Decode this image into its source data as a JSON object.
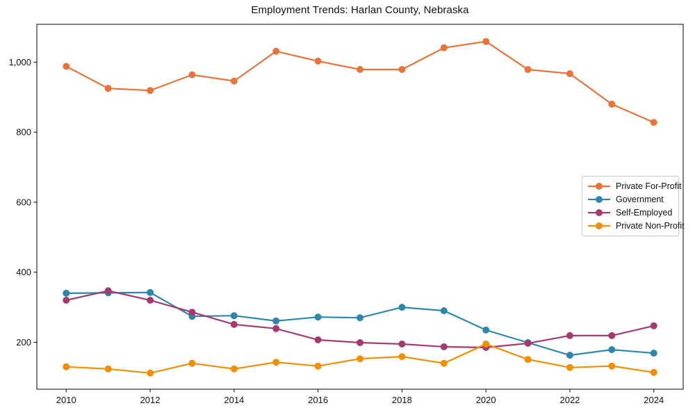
{
  "chart_data": {
    "type": "line",
    "title": "Employment Trends: Harlan County, Nebraska",
    "xlabel": "",
    "ylabel": "",
    "grid": false,
    "legend_position": "center-right",
    "background": "#ffffff",
    "axis_color": "#000000",
    "x": [
      2010,
      2011,
      2012,
      2013,
      2014,
      2015,
      2016,
      2017,
      2018,
      2019,
      2020,
      2021,
      2022,
      2023,
      2024
    ],
    "xlim": [
      2009.3,
      2024.7
    ],
    "ylim": [
      66,
      1108
    ],
    "x_tick_values": [
      2010,
      2012,
      2014,
      2016,
      2018,
      2020,
      2022,
      2024
    ],
    "x_tick_labels": [
      "2010",
      "2012",
      "2014",
      "2016",
      "2018",
      "2020",
      "2022",
      "2024"
    ],
    "y_ticks": [
      200,
      400,
      600,
      800,
      1000
    ],
    "y_tick_labels": [
      "200",
      "400",
      "600",
      "800",
      "1,000"
    ],
    "series": [
      {
        "id": "private-for-profit",
        "name": "Private For-Profit",
        "color": "#E8743B",
        "values": [
          988,
          925,
          919,
          964,
          946,
          1031,
          1003,
          979,
          979,
          1041,
          1059,
          979,
          967,
          880,
          828
        ]
      },
      {
        "id": "government",
        "name": "Government",
        "color": "#2E86AB",
        "values": [
          340,
          341,
          342,
          274,
          276,
          261,
          272,
          270,
          300,
          290,
          235,
          199,
          163,
          179,
          169
        ]
      },
      {
        "id": "self-employed",
        "name": "Self-Employed",
        "color": "#A23B72",
        "values": [
          320,
          347,
          320,
          286,
          251,
          239,
          207,
          199,
          195,
          187,
          185,
          197,
          219,
          219,
          247
        ]
      },
      {
        "id": "private-non-profit",
        "name": "Private Non-Profit",
        "color": "#F18F01",
        "values": [
          130,
          124,
          112,
          140,
          124,
          143,
          132,
          153,
          159,
          140,
          195,
          151,
          128,
          132,
          114
        ]
      }
    ]
  }
}
